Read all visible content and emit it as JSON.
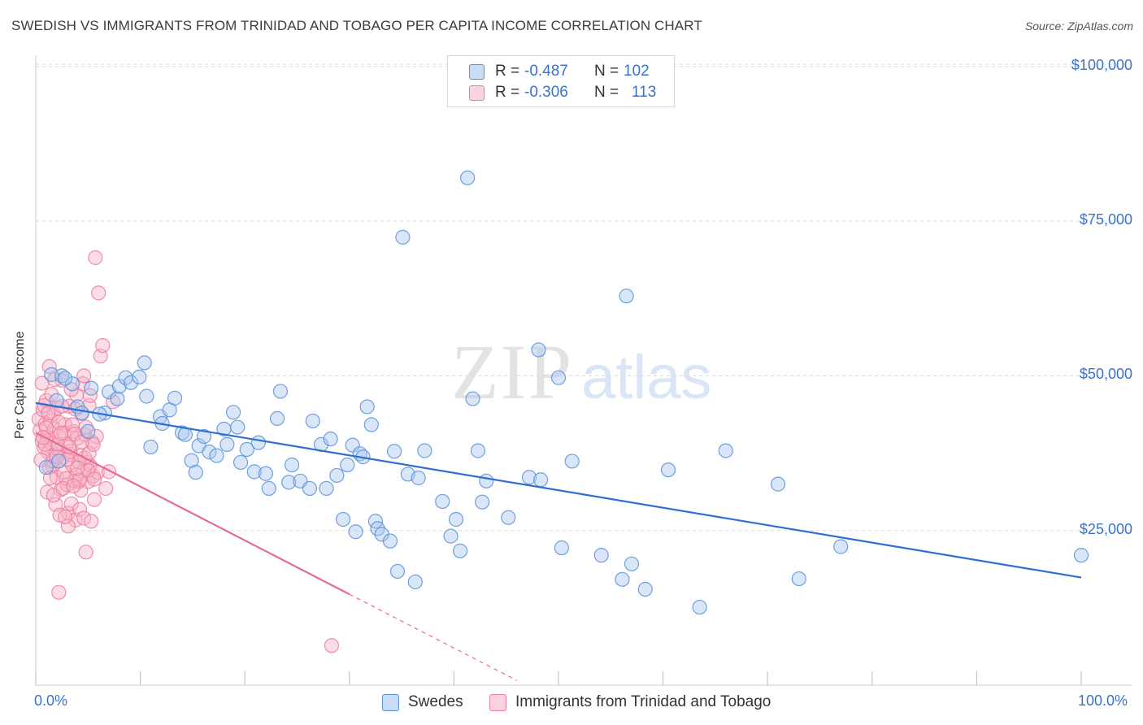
{
  "title": "SWEDISH VS IMMIGRANTS FROM TRINIDAD AND TOBAGO PER CAPITA INCOME CORRELATION CHART",
  "source": "Source: ZipAtlas.com",
  "watermark": {
    "zip": "ZIP",
    "atlas": "atlas"
  },
  "legend": {
    "rows": [
      {
        "r_label": "R =",
        "r_value": "-0.487",
        "n_label": "N =",
        "n_value": "102",
        "color": "#a8c8f0"
      },
      {
        "r_label": "R =",
        "r_value": "-0.306",
        "n_label": "N =",
        "n_value": "113",
        "color": "#f7b3c8"
      }
    ]
  },
  "bottom_legend": [
    {
      "label": "Swedes",
      "color": "#a8c8f0"
    },
    {
      "label": "Immigrants from Trinidad and Tobago",
      "color": "#f7b3c8"
    }
  ],
  "chart_data": {
    "type": "scatter",
    "title": "SWEDISH VS IMMIGRANTS FROM TRINIDAD AND TOBAGO PER CAPITA INCOME CORRELATION CHART",
    "xlabel": "",
    "ylabel": "Per Capita Income",
    "xlim": [
      0,
      100
    ],
    "ylim": [
      0,
      103000
    ],
    "x_tick_labels": [
      "0.0%",
      "100.0%"
    ],
    "y_ticks": [
      25000,
      50000,
      75000,
      100000
    ],
    "y_tick_labels": [
      "$25,000",
      "$50,000",
      "$75,000",
      "$100,000"
    ],
    "grid": "horizontal dashed",
    "legend_position": "top-center",
    "series": [
      {
        "name": "Swedes",
        "color": "#5b8fd8",
        "fill": "#a8c8f0",
        "trend": {
          "x": [
            0,
            100
          ],
          "y": [
            45600,
            17400
          ],
          "color": "#2e6fd0"
        },
        "points": [
          [
            1.5,
            50200
          ],
          [
            2.5,
            50000
          ],
          [
            3.5,
            48700
          ],
          [
            2.8,
            49600
          ],
          [
            2.0,
            46000
          ],
          [
            4.0,
            45000
          ],
          [
            4.4,
            44000
          ],
          [
            5.0,
            41000
          ],
          [
            5.3,
            48000
          ],
          [
            7.0,
            47400
          ],
          [
            6.6,
            44000
          ],
          [
            7.8,
            46300
          ],
          [
            8.0,
            48300
          ],
          [
            8.6,
            49700
          ],
          [
            9.1,
            48900
          ],
          [
            9.9,
            49800
          ],
          [
            10.4,
            52100
          ],
          [
            10.6,
            46700
          ],
          [
            11.0,
            38500
          ],
          [
            11.9,
            43400
          ],
          [
            12.1,
            42300
          ],
          [
            12.8,
            44500
          ],
          [
            13.3,
            46400
          ],
          [
            14.0,
            40800
          ],
          [
            14.3,
            40500
          ],
          [
            14.9,
            36300
          ],
          [
            15.3,
            34400
          ],
          [
            15.6,
            38700
          ],
          [
            16.1,
            40200
          ],
          [
            16.6,
            37700
          ],
          [
            17.3,
            37100
          ],
          [
            18.0,
            41400
          ],
          [
            18.3,
            38900
          ],
          [
            18.9,
            44100
          ],
          [
            19.3,
            41700
          ],
          [
            19.6,
            36000
          ],
          [
            20.2,
            38100
          ],
          [
            20.9,
            34500
          ],
          [
            21.3,
            39200
          ],
          [
            22.0,
            34200
          ],
          [
            22.3,
            31800
          ],
          [
            23.1,
            43100
          ],
          [
            23.4,
            47500
          ],
          [
            24.2,
            32800
          ],
          [
            24.5,
            35600
          ],
          [
            25.3,
            33000
          ],
          [
            26.2,
            31800
          ],
          [
            26.5,
            42700
          ],
          [
            27.3,
            38900
          ],
          [
            27.8,
            31800
          ],
          [
            28.2,
            39800
          ],
          [
            28.8,
            33900
          ],
          [
            29.4,
            26800
          ],
          [
            29.8,
            35600
          ],
          [
            30.3,
            38800
          ],
          [
            30.6,
            24800
          ],
          [
            31.0,
            37400
          ],
          [
            31.3,
            36900
          ],
          [
            31.7,
            45000
          ],
          [
            32.1,
            42100
          ],
          [
            32.5,
            26500
          ],
          [
            32.7,
            25300
          ],
          [
            33.1,
            24400
          ],
          [
            33.9,
            23300
          ],
          [
            34.3,
            37800
          ],
          [
            34.6,
            18400
          ],
          [
            35.1,
            72400
          ],
          [
            35.6,
            34100
          ],
          [
            36.3,
            16700
          ],
          [
            36.6,
            33500
          ],
          [
            37.2,
            37900
          ],
          [
            38.9,
            29700
          ],
          [
            39.7,
            24100
          ],
          [
            40.2,
            26800
          ],
          [
            40.6,
            21700
          ],
          [
            41.3,
            82000
          ],
          [
            41.8,
            46300
          ],
          [
            42.3,
            37900
          ],
          [
            42.7,
            29600
          ],
          [
            43.1,
            33000
          ],
          [
            45.2,
            27100
          ],
          [
            47.2,
            33600
          ],
          [
            48.1,
            54200
          ],
          [
            48.3,
            33200
          ],
          [
            50.0,
            49700
          ],
          [
            50.3,
            22200
          ],
          [
            51.3,
            36200
          ],
          [
            54.1,
            21000
          ],
          [
            56.1,
            17100
          ],
          [
            56.5,
            62900
          ],
          [
            57.0,
            19600
          ],
          [
            58.3,
            15500
          ],
          [
            60.5,
            34800
          ],
          [
            63.5,
            12600
          ],
          [
            66.0,
            37900
          ],
          [
            71.0,
            32500
          ],
          [
            73.0,
            17200
          ],
          [
            77.0,
            22400
          ],
          [
            100.0,
            21000
          ],
          [
            2.2,
            36200
          ],
          [
            6.1,
            43800
          ],
          [
            1.0,
            35200
          ]
        ]
      },
      {
        "name": "Immigrants from Trinidad and Tobago",
        "color": "#ee7d9f",
        "fill": "#f7b3c8",
        "trend": {
          "x": [
            0,
            30
          ],
          "y": [
            40800,
            14700
          ],
          "dash_to": [
            46,
            600
          ],
          "color": "#e76a92"
        },
        "points": [
          [
            0.3,
            43000
          ],
          [
            0.4,
            41200
          ],
          [
            0.6,
            39500
          ],
          [
            0.7,
            44500
          ],
          [
            0.8,
            38400
          ],
          [
            0.9,
            42200
          ],
          [
            1.0,
            46000
          ],
          [
            1.1,
            40100
          ],
          [
            1.2,
            37600
          ],
          [
            1.3,
            51500
          ],
          [
            1.4,
            42700
          ],
          [
            1.5,
            39100
          ],
          [
            1.6,
            35400
          ],
          [
            1.7,
            43900
          ],
          [
            1.8,
            41400
          ],
          [
            1.9,
            37200
          ],
          [
            2.0,
            33600
          ],
          [
            2.1,
            44800
          ],
          [
            2.2,
            40300
          ],
          [
            2.3,
            38000
          ],
          [
            2.4,
            31600
          ],
          [
            2.5,
            49300
          ],
          [
            2.6,
            36800
          ],
          [
            2.7,
            34400
          ],
          [
            2.8,
            42100
          ],
          [
            2.9,
            39000
          ],
          [
            3.0,
            32400
          ],
          [
            3.1,
            27800
          ],
          [
            3.2,
            45100
          ],
          [
            3.3,
            37300
          ],
          [
            3.4,
            29300
          ],
          [
            3.5,
            35600
          ],
          [
            3.6,
            41000
          ],
          [
            3.7,
            33000
          ],
          [
            3.8,
            26700
          ],
          [
            3.9,
            46900
          ],
          [
            4.0,
            39900
          ],
          [
            4.1,
            32900
          ],
          [
            4.2,
            28400
          ],
          [
            4.3,
            37100
          ],
          [
            4.4,
            43900
          ],
          [
            4.5,
            34500
          ],
          [
            4.6,
            27000
          ],
          [
            4.7,
            40500
          ],
          [
            4.8,
            21500
          ],
          [
            4.9,
            36000
          ],
          [
            5.0,
            32900
          ],
          [
            5.1,
            45200
          ],
          [
            5.2,
            35500
          ],
          [
            5.3,
            26500
          ],
          [
            5.4,
            39300
          ],
          [
            5.5,
            33800
          ],
          [
            5.6,
            30000
          ],
          [
            5.7,
            69100
          ],
          [
            5.8,
            40200
          ],
          [
            5.9,
            34400
          ],
          [
            6.0,
            63400
          ],
          [
            6.2,
            53200
          ],
          [
            6.4,
            54900
          ],
          [
            6.7,
            31800
          ],
          [
            7.0,
            34500
          ],
          [
            7.4,
            45800
          ],
          [
            0.5,
            36400
          ],
          [
            0.8,
            45200
          ],
          [
            1.1,
            31200
          ],
          [
            1.5,
            47000
          ],
          [
            1.9,
            29200
          ],
          [
            2.3,
            27500
          ],
          [
            2.7,
            40800
          ],
          [
            3.1,
            25700
          ],
          [
            3.5,
            42100
          ],
          [
            3.9,
            34000
          ],
          [
            4.3,
            31500
          ],
          [
            4.7,
            36700
          ],
          [
            5.1,
            37500
          ],
          [
            5.5,
            38900
          ],
          [
            1.3,
            35200
          ],
          [
            1.7,
            30700
          ],
          [
            2.1,
            38900
          ],
          [
            2.5,
            45100
          ],
          [
            2.9,
            33400
          ],
          [
            3.3,
            37800
          ],
          [
            3.7,
            40600
          ],
          [
            4.1,
            36100
          ],
          [
            4.5,
            48700
          ],
          [
            2.2,
            15000
          ],
          [
            28.3,
            6400
          ],
          [
            0.6,
            48800
          ],
          [
            1.0,
            41600
          ],
          [
            1.4,
            33500
          ],
          [
            1.8,
            49400
          ],
          [
            2.2,
            42500
          ],
          [
            2.6,
            31800
          ],
          [
            3.0,
            36500
          ],
          [
            3.4,
            47800
          ],
          [
            3.8,
            44600
          ],
          [
            4.2,
            33200
          ],
          [
            4.6,
            50000
          ],
          [
            5.0,
            34700
          ],
          [
            0.9,
            38900
          ],
          [
            1.6,
            36200
          ],
          [
            2.4,
            40700
          ],
          [
            3.2,
            38500
          ],
          [
            4.0,
            35100
          ],
          [
            4.8,
            41700
          ],
          [
            5.6,
            33300
          ],
          [
            0.7,
            40000
          ],
          [
            1.2,
            44000
          ],
          [
            2.0,
            36900
          ],
          [
            2.8,
            27200
          ],
          [
            3.6,
            32200
          ],
          [
            4.4,
            39300
          ],
          [
            5.2,
            46800
          ]
        ]
      }
    ]
  }
}
